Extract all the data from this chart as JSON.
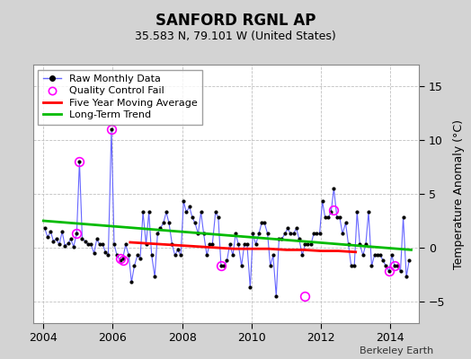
{
  "title": "SANFORD RGNL AP",
  "subtitle": "35.583 N, 79.101 W (United States)",
  "ylabel": "Temperature Anomaly (°C)",
  "credit": "Berkeley Earth",
  "ylim": [
    -7,
    17
  ],
  "yticks": [
    -5,
    0,
    5,
    10,
    15
  ],
  "xlim": [
    2003.7,
    2014.83
  ],
  "xticks": [
    2004,
    2006,
    2008,
    2010,
    2012,
    2014
  ],
  "bg_color": "#d3d3d3",
  "plot_bg_color": "#ffffff",
  "raw_x": [
    2004.04,
    2004.12,
    2004.21,
    2004.29,
    2004.37,
    2004.46,
    2004.54,
    2004.62,
    2004.71,
    2004.79,
    2004.87,
    2004.96,
    2005.04,
    2005.12,
    2005.21,
    2005.29,
    2005.37,
    2005.46,
    2005.54,
    2005.62,
    2005.71,
    2005.79,
    2005.87,
    2005.96,
    2006.04,
    2006.12,
    2006.21,
    2006.29,
    2006.37,
    2006.46,
    2006.54,
    2006.62,
    2006.71,
    2006.79,
    2006.87,
    2006.96,
    2007.04,
    2007.12,
    2007.21,
    2007.29,
    2007.37,
    2007.46,
    2007.54,
    2007.62,
    2007.71,
    2007.79,
    2007.87,
    2007.96,
    2008.04,
    2008.12,
    2008.21,
    2008.29,
    2008.37,
    2008.46,
    2008.54,
    2008.62,
    2008.71,
    2008.79,
    2008.87,
    2008.96,
    2009.04,
    2009.12,
    2009.21,
    2009.29,
    2009.37,
    2009.46,
    2009.54,
    2009.62,
    2009.71,
    2009.79,
    2009.87,
    2009.96,
    2010.04,
    2010.12,
    2010.21,
    2010.29,
    2010.37,
    2010.46,
    2010.54,
    2010.62,
    2010.71,
    2010.79,
    2010.87,
    2010.96,
    2011.04,
    2011.12,
    2011.21,
    2011.29,
    2011.37,
    2011.46,
    2011.54,
    2011.62,
    2011.71,
    2011.79,
    2011.87,
    2011.96,
    2012.04,
    2012.12,
    2012.21,
    2012.29,
    2012.37,
    2012.46,
    2012.54,
    2012.62,
    2012.71,
    2012.79,
    2012.87,
    2012.96,
    2013.04,
    2013.12,
    2013.21,
    2013.29,
    2013.37,
    2013.46,
    2013.54,
    2013.62,
    2013.71,
    2013.79,
    2013.87,
    2013.96,
    2014.04,
    2014.12,
    2014.21,
    2014.29,
    2014.37,
    2014.46,
    2014.54
  ],
  "raw_y": [
    1.8,
    1.0,
    1.5,
    0.6,
    0.8,
    0.3,
    1.5,
    0.2,
    0.4,
    0.8,
    0.1,
    1.3,
    8.0,
    0.8,
    0.6,
    0.3,
    0.3,
    -0.5,
    0.8,
    0.3,
    0.3,
    -0.4,
    -0.7,
    11.0,
    0.3,
    -0.7,
    -1.2,
    -1.0,
    0.3,
    -0.7,
    -3.2,
    -1.7,
    -0.7,
    -1.0,
    3.3,
    0.3,
    3.3,
    -0.7,
    -2.7,
    1.3,
    1.8,
    2.3,
    3.3,
    2.3,
    0.3,
    -0.7,
    -0.2,
    -0.7,
    4.3,
    3.3,
    3.8,
    2.8,
    2.3,
    1.3,
    3.3,
    1.3,
    -0.7,
    0.3,
    0.3,
    3.3,
    2.8,
    -1.7,
    -1.7,
    -1.2,
    0.3,
    -0.7,
    1.3,
    0.3,
    -1.7,
    0.3,
    0.3,
    -3.7,
    1.3,
    0.3,
    1.3,
    2.3,
    2.3,
    1.3,
    -1.7,
    -0.7,
    -4.5,
    0.8,
    0.8,
    1.3,
    1.8,
    1.3,
    1.3,
    1.8,
    0.8,
    -0.7,
    0.3,
    0.3,
    0.3,
    1.3,
    1.3,
    1.3,
    4.3,
    2.8,
    2.8,
    3.3,
    5.5,
    2.8,
    2.8,
    1.3,
    2.3,
    0.3,
    -1.7,
    -1.7,
    3.3,
    0.3,
    -0.7,
    0.3,
    3.3,
    -1.7,
    -0.7,
    -0.7,
    -0.7,
    -1.2,
    -1.7,
    -2.2,
    -0.7,
    -1.7,
    -1.7,
    -2.2,
    2.8,
    -2.7,
    -1.2
  ],
  "qc_fail_x": [
    2004.96,
    2005.04,
    2005.96,
    2006.21,
    2006.29,
    2009.12,
    2011.54,
    2012.37,
    2013.96,
    2014.12
  ],
  "qc_fail_y": [
    1.3,
    8.0,
    11.0,
    -1.0,
    -1.2,
    -1.7,
    -4.5,
    3.5,
    -2.2,
    -1.7
  ],
  "moving_avg_x": [
    2006.5,
    2007.0,
    2007.5,
    2008.0,
    2008.5,
    2009.0,
    2009.5,
    2010.0,
    2010.5,
    2011.0,
    2011.5,
    2012.0,
    2012.5,
    2013.0
  ],
  "moving_avg_y": [
    0.5,
    0.4,
    0.3,
    0.2,
    0.1,
    0.0,
    -0.1,
    -0.1,
    -0.1,
    -0.2,
    -0.2,
    -0.3,
    -0.3,
    -0.4
  ],
  "trend_x": [
    2004.0,
    2014.6
  ],
  "trend_y": [
    2.5,
    -0.2
  ],
  "raw_line_color": "#6666ff",
  "raw_marker_color": "#000000",
  "qc_color": "#ff00ff",
  "moving_avg_color": "#ff0000",
  "trend_color": "#00bb00",
  "grid_color": "#c0c0c0",
  "legend_fontsize": 8,
  "title_fontsize": 12,
  "subtitle_fontsize": 9,
  "tick_fontsize": 9
}
